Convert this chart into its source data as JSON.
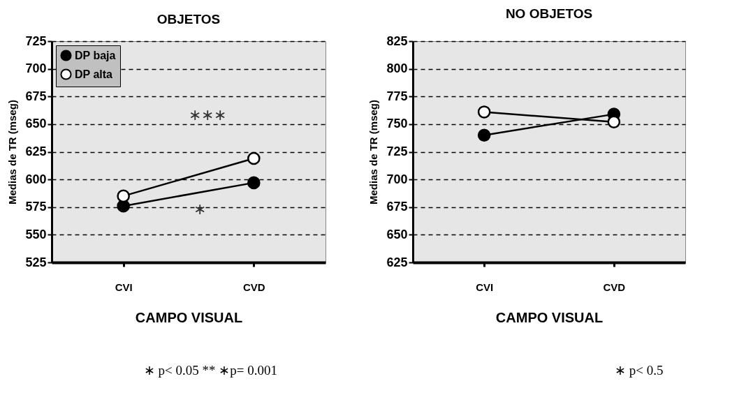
{
  "chart_data": [
    {
      "type": "line",
      "title": "OBJETOS",
      "xlabel": "CAMPO VISUAL",
      "ylabel": "Medias de TR (mseg)",
      "categories": [
        "CVI",
        "CVD"
      ],
      "ylim": [
        525,
        725
      ],
      "yticks": [
        525,
        550,
        575,
        600,
        625,
        650,
        675,
        700,
        725
      ],
      "grid": "y",
      "marker": "circle",
      "legend": "top left",
      "series": [
        {
          "name": "DP baja",
          "color": "#000000",
          "values": [
            576,
            597
          ]
        },
        {
          "name": "DP alta",
          "color": "#ffffff",
          "values": [
            585,
            619
          ]
        }
      ],
      "annotations": [
        "∗∗∗",
        "∗",
        "∗ p< 0.05   ** ∗p= 0.001"
      ]
    },
    {
      "type": "line",
      "title": "NO OBJETOS",
      "xlabel": "CAMPO VISUAL",
      "ylabel": "Medias de TR (mseg)",
      "categories": [
        "CVI",
        "CVD"
      ],
      "ylim": [
        625,
        825
      ],
      "yticks": [
        625,
        650,
        675,
        700,
        725,
        750,
        775,
        800,
        825
      ],
      "grid": "y",
      "marker": "circle",
      "legend": "top left",
      "series": [
        {
          "name": "DP baja",
          "color": "#000000",
          "values": [
            740,
            759
          ]
        },
        {
          "name": "DP alta",
          "color": "#ffffff",
          "values": [
            761,
            752
          ]
        }
      ],
      "annotations": [
        "∗ p< 0.5"
      ]
    }
  ]
}
